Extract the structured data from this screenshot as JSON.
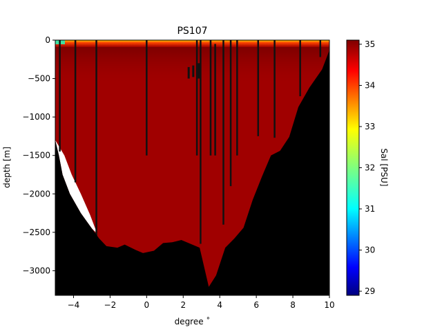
{
  "chart_data": {
    "type": "heatmap",
    "title": "PS107",
    "xlabel": "degree ˚",
    "ylabel": "depth [m]",
    "colorbar_label": "Sal [PSU]",
    "xlim": [
      -5,
      10
    ],
    "ylim": [
      -3320,
      0
    ],
    "x_ticks": [
      -4,
      -2,
      0,
      2,
      4,
      6,
      8,
      10
    ],
    "x_tick_labels": [
      "−4",
      "−2",
      "0",
      "2",
      "4",
      "6",
      "8",
      "10"
    ],
    "y_ticks": [
      0,
      -500,
      -1000,
      -1500,
      -2000,
      -2500,
      -3000
    ],
    "y_tick_labels": [
      "0",
      "−500",
      "−1000",
      "−1500",
      "−2000",
      "−2500",
      "−3000"
    ],
    "colorbar_range": [
      28.9,
      35.1
    ],
    "colorbar_ticks": [
      29,
      30,
      31,
      32,
      33,
      34,
      35
    ],
    "colorbar_tick_labels": [
      "29",
      "30",
      "31",
      "32",
      "33",
      "34",
      "35"
    ],
    "colormap": "jet",
    "bulk_salinity": 34.9,
    "bathymetry": [
      [
        -5,
        -1300
      ],
      [
        -4.8,
        -1500
      ],
      [
        -4.6,
        -1750
      ],
      [
        -4.2,
        -2000
      ],
      [
        -3.6,
        -2250
      ],
      [
        -3.0,
        -2450
      ],
      [
        -2.6,
        -2580
      ],
      [
        -2.2,
        -2680
      ],
      [
        -1.6,
        -2700
      ],
      [
        -1.2,
        -2660
      ],
      [
        -0.6,
        -2730
      ],
      [
        -0.2,
        -2770
      ],
      [
        0.4,
        -2740
      ],
      [
        0.9,
        -2640
      ],
      [
        1.4,
        -2630
      ],
      [
        1.9,
        -2600
      ],
      [
        2.9,
        -2700
      ],
      [
        3.4,
        -3210
      ],
      [
        3.8,
        -3060
      ],
      [
        4.3,
        -2700
      ],
      [
        4.8,
        -2580
      ],
      [
        5.3,
        -2440
      ],
      [
        5.8,
        -2080
      ],
      [
        6.3,
        -1780
      ],
      [
        6.8,
        -1500
      ],
      [
        7.3,
        -1440
      ],
      [
        7.8,
        -1260
      ],
      [
        8.3,
        -870
      ],
      [
        8.9,
        -620
      ],
      [
        9.6,
        -380
      ],
      [
        10,
        -130
      ]
    ],
    "missing_data_wedge": [
      [
        -5,
        -1300
      ],
      [
        -4.5,
        -1500
      ],
      [
        -4.1,
        -1750
      ],
      [
        -3.6,
        -2000
      ],
      [
        -3.1,
        -2270
      ],
      [
        -2.7,
        -2520
      ],
      [
        -3.0,
        -2450
      ],
      [
        -3.6,
        -2250
      ],
      [
        -4.2,
        -2000
      ],
      [
        -4.6,
        -1750
      ],
      [
        -4.8,
        -1500
      ]
    ],
    "station_profiles": [
      {
        "x": -4.75,
        "top": 0,
        "bottom": -1450
      },
      {
        "x": -3.9,
        "top": 0,
        "bottom": -1850
      },
      {
        "x": -2.75,
        "top": 0,
        "bottom": -2550
      },
      {
        "x": 0.0,
        "top": 0,
        "bottom": -1500
      },
      {
        "x": 2.75,
        "top": 0,
        "bottom": -1500
      },
      {
        "x": 2.95,
        "top": 0,
        "bottom": -2650
      },
      {
        "x": 3.5,
        "top": 0,
        "bottom": -1500
      },
      {
        "x": 3.75,
        "top": -50,
        "bottom": -1500
      },
      {
        "x": 4.2,
        "top": 0,
        "bottom": -2400
      },
      {
        "x": 4.6,
        "top": 0,
        "bottom": -1900
      },
      {
        "x": 4.95,
        "top": 0,
        "bottom": -1500
      },
      {
        "x": 6.1,
        "top": 0,
        "bottom": -1250
      },
      {
        "x": 7.0,
        "top": 0,
        "bottom": -1270
      },
      {
        "x": 8.4,
        "top": 0,
        "bottom": -730
      },
      {
        "x": 9.5,
        "top": 0,
        "bottom": -220
      }
    ],
    "short_profiles": [
      {
        "x": 2.3,
        "top": -350,
        "bottom": -500
      },
      {
        "x": 2.55,
        "top": -330,
        "bottom": -480
      },
      {
        "x": 2.85,
        "top": -300,
        "bottom": -500
      }
    ],
    "surface_layer": {
      "depth": -90,
      "salinity_gradient": [
        31.0,
        34.0,
        35.0
      ]
    }
  }
}
